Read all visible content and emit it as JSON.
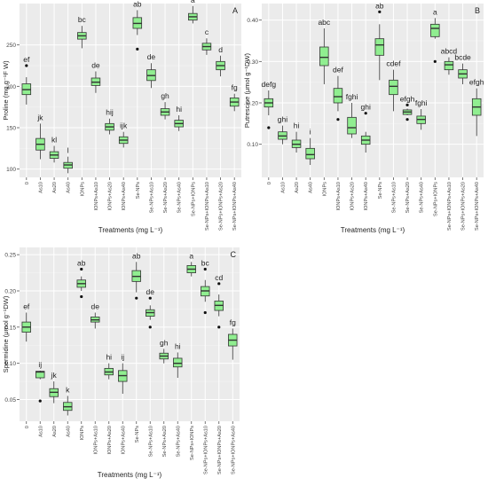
{
  "chart_data": [
    {
      "type": "box",
      "panel_letter": "A",
      "xlabel": "Treatments (mg L⁻¹)",
      "ylabel": "Proline (mg g⁻¹F W)",
      "ylim": [
        90,
        300
      ],
      "yticks": [
        100,
        150,
        200,
        250
      ],
      "grid": true,
      "categories": [
        "0",
        "As10",
        "As20",
        "As40",
        "IONPs",
        "IONPs+As10",
        "IONPs+As20",
        "IONPs+As40",
        "Se-NPs",
        "Se-NPs+As10",
        "Se-NPs+As20",
        "Se-NPs+As40",
        "Se-NPs+IONPs",
        "Se-NPs+IONPs+As10",
        "Se-NPs+IONPs+As20",
        "Se-NPs+IONPs+As40"
      ],
      "boxes": [
        {
          "whislo": 178,
          "q1": 190,
          "med": 196,
          "q3": 203,
          "whishi": 211,
          "outliers": [
            225
          ],
          "letter": "ef"
        },
        {
          "whislo": 112,
          "q1": 123,
          "med": 130,
          "q3": 137,
          "whishi": 155,
          "outliers": [],
          "letter": "jk"
        },
        {
          "whislo": 108,
          "q1": 113,
          "med": 117,
          "q3": 121,
          "whishi": 128,
          "outliers": [],
          "letter": "kl"
        },
        {
          "whislo": 95,
          "q1": 101,
          "med": 105,
          "q3": 108,
          "whishi": 115,
          "outliers": [],
          "letter": "l"
        },
        {
          "whislo": 246,
          "q1": 257,
          "med": 261,
          "q3": 265,
          "whishi": 273,
          "outliers": [],
          "letter": "bc"
        },
        {
          "whislo": 192,
          "q1": 201,
          "med": 205,
          "q3": 210,
          "whishi": 218,
          "outliers": [],
          "letter": "de"
        },
        {
          "whislo": 142,
          "q1": 147,
          "med": 151,
          "q3": 155,
          "whishi": 161,
          "outliers": [],
          "letter": "hij"
        },
        {
          "whislo": 126,
          "q1": 131,
          "med": 135,
          "q3": 139,
          "whishi": 145,
          "outliers": [],
          "letter": "ijk"
        },
        {
          "whislo": 262,
          "q1": 270,
          "med": 276,
          "q3": 283,
          "whishi": 292,
          "outliers": [
            245
          ],
          "letter": "ab"
        },
        {
          "whislo": 198,
          "q1": 207,
          "med": 213,
          "q3": 220,
          "whishi": 228,
          "outliers": [],
          "letter": "de"
        },
        {
          "whislo": 160,
          "q1": 165,
          "med": 169,
          "q3": 173,
          "whishi": 181,
          "outliers": [],
          "letter": "gh"
        },
        {
          "whislo": 146,
          "q1": 151,
          "med": 155,
          "q3": 159,
          "whishi": 165,
          "outliers": [],
          "letter": "hi"
        },
        {
          "whislo": 276,
          "q1": 280,
          "med": 284,
          "q3": 288,
          "whishi": 297,
          "outliers": [],
          "letter": "a"
        },
        {
          "whislo": 238,
          "q1": 244,
          "med": 248,
          "q3": 252,
          "whishi": 258,
          "outliers": [],
          "letter": "c"
        },
        {
          "whislo": 212,
          "q1": 220,
          "med": 225,
          "q3": 230,
          "whishi": 237,
          "outliers": [],
          "letter": "d"
        },
        {
          "whislo": 170,
          "q1": 176,
          "med": 181,
          "q3": 186,
          "whishi": 191,
          "outliers": [],
          "letter": "fg"
        }
      ]
    },
    {
      "type": "box",
      "panel_letter": "B",
      "xlabel": "Treatments (mg L⁻¹)",
      "ylabel": "Putrescine (μmol g⁻¹DW)",
      "ylim": [
        0.02,
        0.44
      ],
      "yticks": [
        0.1,
        0.2,
        0.3,
        0.4
      ],
      "grid": true,
      "categories": [
        "0",
        "As10",
        "As20",
        "As40",
        "IONPs",
        "IONPs+As10",
        "IONPs+As20",
        "IONPs+As40",
        "Se-NPs",
        "Se-NPs+As10",
        "Se-NPs+As20",
        "Se-NPs+As40",
        "Se-NPs+IONPs",
        "Se-NPs+IONPs+As10",
        "Se-NPs+IONPs+As20",
        "Se-NPs+IONPs+As40"
      ],
      "boxes": [
        {
          "whislo": 0.17,
          "q1": 0.19,
          "med": 0.2,
          "q3": 0.21,
          "whishi": 0.23,
          "outliers": [
            0.14
          ],
          "letter": "defg"
        },
        {
          "whislo": 0.1,
          "q1": 0.112,
          "med": 0.12,
          "q3": 0.13,
          "whishi": 0.145,
          "outliers": [],
          "letter": "ghi"
        },
        {
          "whislo": 0.08,
          "q1": 0.092,
          "med": 0.1,
          "q3": 0.11,
          "whishi": 0.13,
          "outliers": [],
          "letter": "hi"
        },
        {
          "whislo": 0.05,
          "q1": 0.065,
          "med": 0.075,
          "q3": 0.09,
          "whishi": 0.115,
          "outliers": [],
          "letter": "i"
        },
        {
          "whislo": 0.245,
          "q1": 0.29,
          "med": 0.31,
          "q3": 0.335,
          "whishi": 0.38,
          "outliers": [],
          "letter": "abc"
        },
        {
          "whislo": 0.18,
          "q1": 0.2,
          "med": 0.215,
          "q3": 0.235,
          "whishi": 0.265,
          "outliers": [
            0.16
          ],
          "letter": "def"
        },
        {
          "whislo": 0.115,
          "q1": 0.125,
          "med": 0.14,
          "q3": 0.165,
          "whishi": 0.2,
          "outliers": [],
          "letter": "fghi"
        },
        {
          "whislo": 0.08,
          "q1": 0.1,
          "med": 0.11,
          "q3": 0.12,
          "whishi": 0.13,
          "outliers": [
            0.175
          ],
          "letter": "ghi"
        },
        {
          "whislo": 0.255,
          "q1": 0.315,
          "med": 0.34,
          "q3": 0.355,
          "whishi": 0.39,
          "outliers": [
            0.42
          ],
          "letter": "ab"
        },
        {
          "whislo": 0.18,
          "q1": 0.22,
          "med": 0.24,
          "q3": 0.255,
          "whishi": 0.28,
          "outliers": [],
          "letter": "cdef"
        },
        {
          "whislo": 0.17,
          "q1": 0.172,
          "med": 0.178,
          "q3": 0.183,
          "whishi": 0.186,
          "outliers": [
            0.195,
            0.16
          ],
          "letter": "efgh"
        },
        {
          "whislo": 0.135,
          "q1": 0.15,
          "med": 0.16,
          "q3": 0.168,
          "whishi": 0.185,
          "outliers": [],
          "letter": "fghi"
        },
        {
          "whislo": 0.355,
          "q1": 0.36,
          "med": 0.38,
          "q3": 0.39,
          "whishi": 0.405,
          "outliers": [
            0.3
          ],
          "letter": "a"
        },
        {
          "whislo": 0.268,
          "q1": 0.28,
          "med": 0.292,
          "q3": 0.3,
          "whishi": 0.31,
          "outliers": [],
          "letter": "abcd"
        },
        {
          "whislo": 0.245,
          "q1": 0.26,
          "med": 0.27,
          "q3": 0.28,
          "whishi": 0.295,
          "outliers": [],
          "letter": "bcde"
        },
        {
          "whislo": 0.12,
          "q1": 0.17,
          "med": 0.19,
          "q3": 0.21,
          "whishi": 0.235,
          "outliers": [],
          "letter": "efgh"
        }
      ]
    },
    {
      "type": "box",
      "panel_letter": "C",
      "xlabel": "Treatments (mg L⁻¹)",
      "ylabel": "Spermidine (μmol g⁻¹DW)",
      "ylim": [
        0.02,
        0.26
      ],
      "yticks": [
        0.05,
        0.1,
        0.15,
        0.2,
        0.25
      ],
      "grid": true,
      "categories": [
        "0",
        "As10",
        "As20",
        "As40",
        "IONPs",
        "IONPs+As10",
        "IONPs+As20",
        "IONPs+As40",
        "Se-NPs",
        "Se-NPs+As10",
        "Se-NPs+As20",
        "Se-NPs+As40",
        "Se-NPs+IONPs",
        "Se-NPs+IONPs+As10",
        "Se-NPs+IONPs+As20",
        "Se-NPs+IONPs+As40"
      ],
      "boxes": [
        {
          "whislo": 0.13,
          "q1": 0.143,
          "med": 0.15,
          "q3": 0.157,
          "whishi": 0.17,
          "outliers": [],
          "letter": "ef"
        },
        {
          "whislo": 0.078,
          "q1": 0.08,
          "med": 0.088,
          "q3": 0.089,
          "whishi": 0.09,
          "outliers": [
            0.048
          ],
          "letter": "ij"
        },
        {
          "whislo": 0.045,
          "q1": 0.054,
          "med": 0.06,
          "q3": 0.065,
          "whishi": 0.075,
          "outliers": [],
          "letter": "jk"
        },
        {
          "whislo": 0.028,
          "q1": 0.035,
          "med": 0.04,
          "q3": 0.046,
          "whishi": 0.055,
          "outliers": [],
          "letter": "k"
        },
        {
          "whislo": 0.2,
          "q1": 0.205,
          "med": 0.21,
          "q3": 0.215,
          "whishi": 0.22,
          "outliers": [
            0.23,
            0.192
          ],
          "letter": "ab"
        },
        {
          "whislo": 0.148,
          "q1": 0.157,
          "med": 0.16,
          "q3": 0.164,
          "whishi": 0.17,
          "outliers": [],
          "letter": "de"
        },
        {
          "whislo": 0.078,
          "q1": 0.084,
          "med": 0.088,
          "q3": 0.093,
          "whishi": 0.1,
          "outliers": [],
          "letter": "hi"
        },
        {
          "whislo": 0.058,
          "q1": 0.075,
          "med": 0.083,
          "q3": 0.09,
          "whishi": 0.1,
          "outliers": [],
          "letter": "ij"
        },
        {
          "whislo": 0.198,
          "q1": 0.213,
          "med": 0.22,
          "q3": 0.228,
          "whishi": 0.24,
          "outliers": [
            0.19
          ],
          "letter": "ab"
        },
        {
          "whislo": 0.16,
          "q1": 0.165,
          "med": 0.17,
          "q3": 0.174,
          "whishi": 0.18,
          "outliers": [
            0.19,
            0.15
          ],
          "letter": "de"
        },
        {
          "whislo": 0.1,
          "q1": 0.106,
          "med": 0.11,
          "q3": 0.114,
          "whishi": 0.12,
          "outliers": [],
          "letter": "gh"
        },
        {
          "whislo": 0.08,
          "q1": 0.095,
          "med": 0.1,
          "q3": 0.107,
          "whishi": 0.115,
          "outliers": [],
          "letter": "hi"
        },
        {
          "whislo": 0.22,
          "q1": 0.225,
          "med": 0.23,
          "q3": 0.235,
          "whishi": 0.24,
          "outliers": [],
          "letter": "a"
        },
        {
          "whislo": 0.185,
          "q1": 0.193,
          "med": 0.2,
          "q3": 0.206,
          "whishi": 0.215,
          "outliers": [
            0.23,
            0.17
          ],
          "letter": "bc"
        },
        {
          "whislo": 0.165,
          "q1": 0.173,
          "med": 0.18,
          "q3": 0.186,
          "whishi": 0.195,
          "outliers": [
            0.21,
            0.15
          ],
          "letter": "cd"
        },
        {
          "whislo": 0.105,
          "q1": 0.124,
          "med": 0.132,
          "q3": 0.14,
          "whishi": 0.148,
          "outliers": [],
          "letter": "fg"
        }
      ]
    }
  ],
  "colors": {
    "panel_bg": "#ebebeb",
    "box_fill": "#90ee90",
    "box_stroke": "#333333",
    "text": "#222222"
  }
}
